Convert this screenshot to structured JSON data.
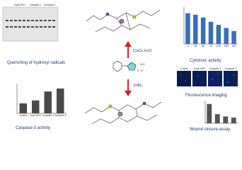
{
  "gel": {
    "title": "Quenching of hydroxyl radicals",
    "lanes": [
      "Kpot H2O",
      "Complex 1",
      "Complex 2"
    ]
  },
  "reaction": {
    "cu_reagent": "CuCl₂.H₂O",
    "zn_reagent": "ZnBr₂",
    "ligand_labels": [
      "S",
      "K⁺",
      "H₂O"
    ]
  },
  "cytotoxic": {
    "title": "Cytotoxic activity",
    "categories": [
      "0",
      "25",
      "50",
      "75",
      "100",
      "150",
      "200"
    ],
    "values": [
      100,
      95,
      86,
      72,
      62,
      52,
      42
    ],
    "ylim": [
      0,
      120
    ],
    "color": "#3b6fb5"
  },
  "fluorescence": {
    "title": "Fluorescence imaging",
    "labels": [
      "Control",
      "Kpot H2O",
      "Complex 1",
      "Complex 2"
    ]
  },
  "caspase": {
    "title": "Caspase-3 activity",
    "categories": [
      "Control",
      "Kpot H2O",
      "Complex 1",
      "Complex 2"
    ],
    "values": [
      1,
      1.3,
      2.2,
      2.5
    ],
    "ylim": [
      0,
      3
    ],
    "color": "#4a4a4a"
  },
  "wound": {
    "title": "Wound closure assay",
    "values": [
      85,
      40,
      30,
      25
    ],
    "ylim": [
      0,
      100
    ],
    "color": "#555"
  }
}
